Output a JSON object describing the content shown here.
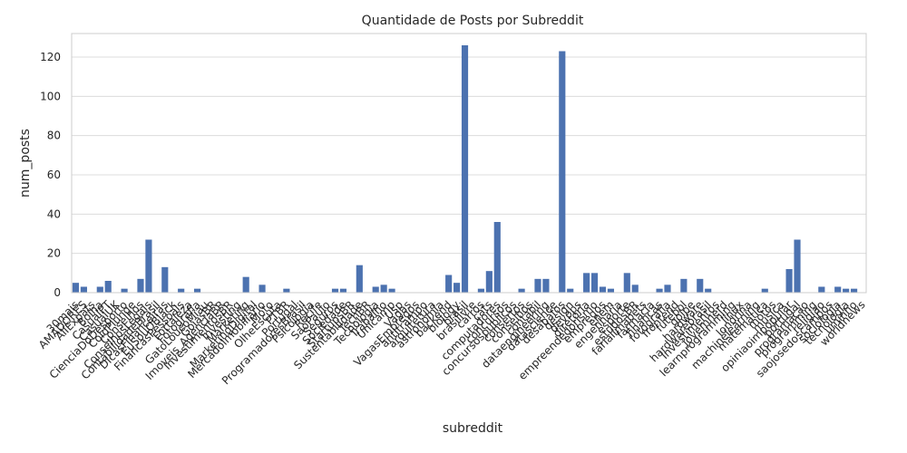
{
  "chart_data": {
    "type": "bar",
    "title": "Quantidade de Posts por Subreddit",
    "xlabel": "subreddit",
    "ylabel": "num_posts",
    "ylim": [
      0,
      132
    ],
    "yticks": [
      0,
      20,
      40,
      60,
      80,
      100,
      120
    ],
    "grid": true,
    "bar_color": "#4c72b0",
    "categories": [
      "30mais",
      "AMADORES",
      "AllExpats",
      "Bolha",
      "CasualPT",
      "CasualUK",
      "CienciaDoDesporto",
      "ColdPlunge",
      "Conselhos",
      "ConselhosLegais",
      "ContabilidadeBrasil",
      "DicasFinanceiras",
      "EuSouOBlack",
      "FinancasPessoais",
      "Fortaleza",
      "Fotografia",
      "GatoLoucoMiau",
      "GoiasBR",
      "Imoveis_AgenciaBR",
      "InvestimentosBR",
      "Investing",
      "Marketing",
      "MarketingDigital",
      "MercadoImobiliario",
      "Moto",
      "OlheEscuta",
      "PTBR",
      "Portugal",
      "ProgramadoresBrasil",
      "Psicologia",
      "Recife",
      "SaoPaulo",
      "Seguros",
      "Sociedade",
      "StartupsBR",
      "Sustentabilidade",
      "TechBR",
      "Tecnologia",
      "Trabalho",
      "Unicamp",
      "Usp",
      "Vagas",
      "VagasEmpregos",
      "antitrampo",
      "arquitetura",
      "astronomia",
      "backend",
      "biology",
      "brasil",
      "brasilivre",
      "carros",
      "cats",
      "computadores",
      "concursos",
      "concursospublicos",
      "consertos",
      "conselhos",
      "contabil",
      "dataengineering",
      "datascience",
      "desabafos",
      "design",
      "devops",
      "diretoria",
      "empreendedorismo",
      "empregos",
      "enem",
      "engenharia",
      "esporte",
      "estudosBR",
      "farialimabets",
      "farmacia",
      "financas",
      "fotografia",
      "frontend",
      "futebol",
      "golpe",
      "hardware",
      "hardwarebrasil",
      "investimentos",
      "jovemnerd",
      "learnprogramming",
      "linux",
      "londrina",
      "machinelearning",
      "matematica",
      "motos",
      "musica",
      "opiniaoimpopular",
      "portugal",
      "programacao",
      "programming",
      "religiao",
      "saojosedoscampos",
      "sociologia",
      "tecnologia",
      "uminho",
      "worldnews"
    ],
    "values": [
      5,
      3,
      0,
      3,
      6,
      0,
      2,
      0,
      7,
      27,
      0,
      13,
      0,
      2,
      0,
      2,
      0,
      0,
      0,
      0,
      0,
      8,
      0,
      4,
      0,
      0,
      2,
      0,
      0,
      0,
      0,
      0,
      2,
      2,
      0,
      14,
      0,
      3,
      4,
      2,
      0,
      0,
      0,
      0,
      0,
      0,
      9,
      5,
      126,
      0,
      2,
      11,
      36,
      0,
      0,
      2,
      0,
      7,
      7,
      0,
      123,
      2,
      0,
      10,
      10,
      3,
      2,
      0,
      10,
      4,
      0,
      0,
      2,
      4,
      0,
      7,
      0,
      7,
      2,
      0,
      0,
      0,
      0,
      0,
      0,
      2,
      0,
      0,
      12,
      27,
      0,
      0,
      3,
      0,
      3,
      2,
      2,
      0
    ]
  }
}
